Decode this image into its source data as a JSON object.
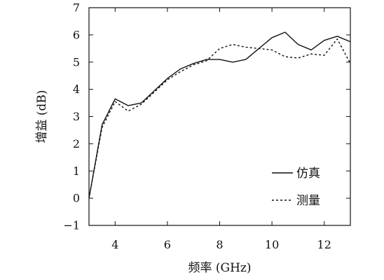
{
  "chart_data": {
    "type": "line",
    "title": "",
    "xlabel": "频率 (GHz)",
    "ylabel": "增益 (dB)",
    "xlim": [
      3,
      13
    ],
    "ylim": [
      -1,
      7
    ],
    "xticks": [
      4,
      6,
      8,
      10,
      12
    ],
    "yticks": [
      -1,
      0,
      1,
      2,
      3,
      4,
      5,
      6,
      7
    ],
    "xtick_labels": [
      "4",
      "6",
      "8",
      "10",
      "12"
    ],
    "ytick_labels": [
      "−1",
      "0",
      "1",
      "2",
      "3",
      "4",
      "5",
      "6",
      "7"
    ],
    "grid": false,
    "legend_position": "right-center",
    "series": [
      {
        "name": "仿真",
        "style": "solid",
        "color": "#111111",
        "x": [
          3.0,
          3.5,
          4.0,
          4.5,
          5.0,
          5.5,
          6.0,
          6.5,
          7.0,
          7.5,
          8.0,
          8.5,
          9.0,
          9.5,
          10.0,
          10.5,
          11.0,
          11.5,
          12.0,
          12.5,
          13.0
        ],
        "y": [
          0.0,
          2.7,
          3.65,
          3.4,
          3.5,
          3.95,
          4.4,
          4.75,
          4.95,
          5.1,
          5.1,
          5.0,
          5.1,
          5.5,
          5.9,
          6.1,
          5.65,
          5.45,
          5.8,
          5.95,
          5.75
        ]
      },
      {
        "name": "测量",
        "style": "dashed",
        "color": "#111111",
        "x": [
          3.0,
          3.5,
          4.0,
          4.5,
          5.0,
          5.5,
          6.0,
          6.5,
          7.0,
          7.5,
          8.0,
          8.5,
          9.0,
          9.5,
          10.0,
          10.5,
          11.0,
          11.5,
          12.0,
          12.5,
          13.0
        ],
        "y": [
          0.0,
          2.6,
          3.55,
          3.2,
          3.45,
          3.9,
          4.35,
          4.65,
          4.9,
          5.05,
          5.5,
          5.65,
          5.55,
          5.5,
          5.45,
          5.2,
          5.15,
          5.3,
          5.25,
          5.85,
          4.95
        ]
      }
    ]
  }
}
